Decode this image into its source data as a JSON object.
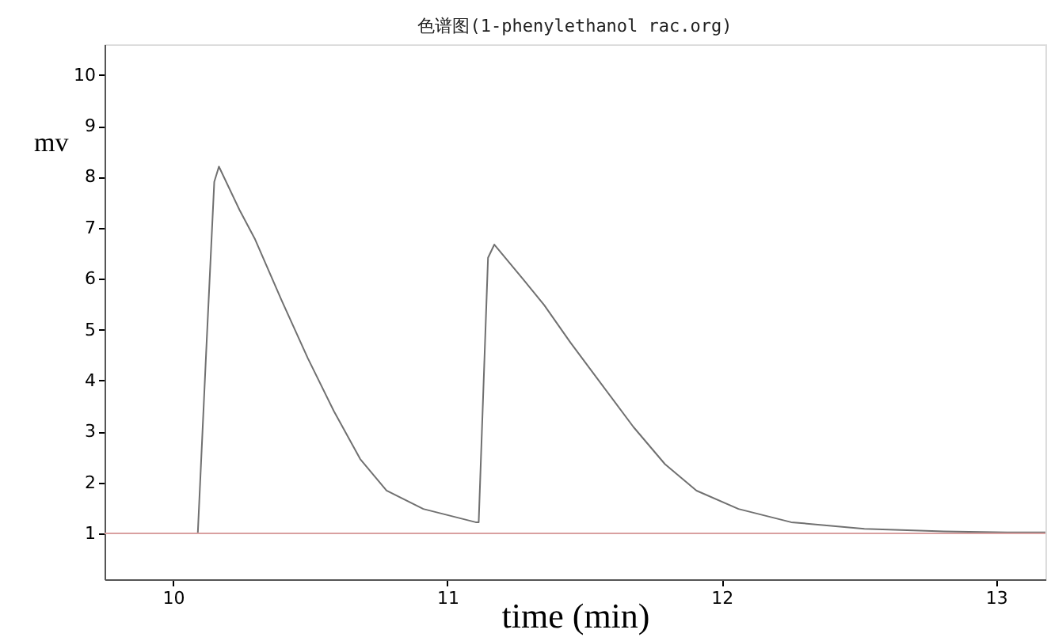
{
  "chart_data": {
    "type": "line",
    "title": "色谱图(1-phenylethanol rac.org)",
    "xlabel": "time (min)",
    "ylabel": "mv",
    "xlim": [
      9.75,
      13.18
    ],
    "xticks": [
      10,
      11,
      12,
      13
    ],
    "ylim": [
      0.1,
      10.6
    ],
    "yticks": [
      1,
      2,
      3,
      4,
      5,
      6,
      7,
      8,
      9,
      10
    ],
    "grid": false,
    "marker": "none",
    "line_style": "solid",
    "series": [
      {
        "color": "#707070",
        "x": [
          9.75,
          10.09,
          10.12,
          10.15,
          10.167,
          10.242,
          10.299,
          10.395,
          10.491,
          10.586,
          10.682,
          10.778,
          10.912,
          11.103,
          11.114,
          11.148,
          11.171,
          11.276,
          11.353,
          11.448,
          11.563,
          11.678,
          11.793,
          11.908,
          12.061,
          12.253,
          12.52,
          12.81,
          13.04,
          13.18
        ],
        "values": [
          1.0,
          1.0,
          4.5,
          7.9,
          8.2,
          7.35,
          6.77,
          5.58,
          4.44,
          3.4,
          2.46,
          1.84,
          1.48,
          1.22,
          1.22,
          6.41,
          6.67,
          5.99,
          5.48,
          4.75,
          3.92,
          3.09,
          2.36,
          1.84,
          1.48,
          1.22,
          1.09,
          1.04,
          1.02,
          1.02
        ]
      }
    ],
    "ref_lines": [
      {
        "axis": "y",
        "value": 1,
        "color": "#d9a0a0"
      }
    ]
  }
}
